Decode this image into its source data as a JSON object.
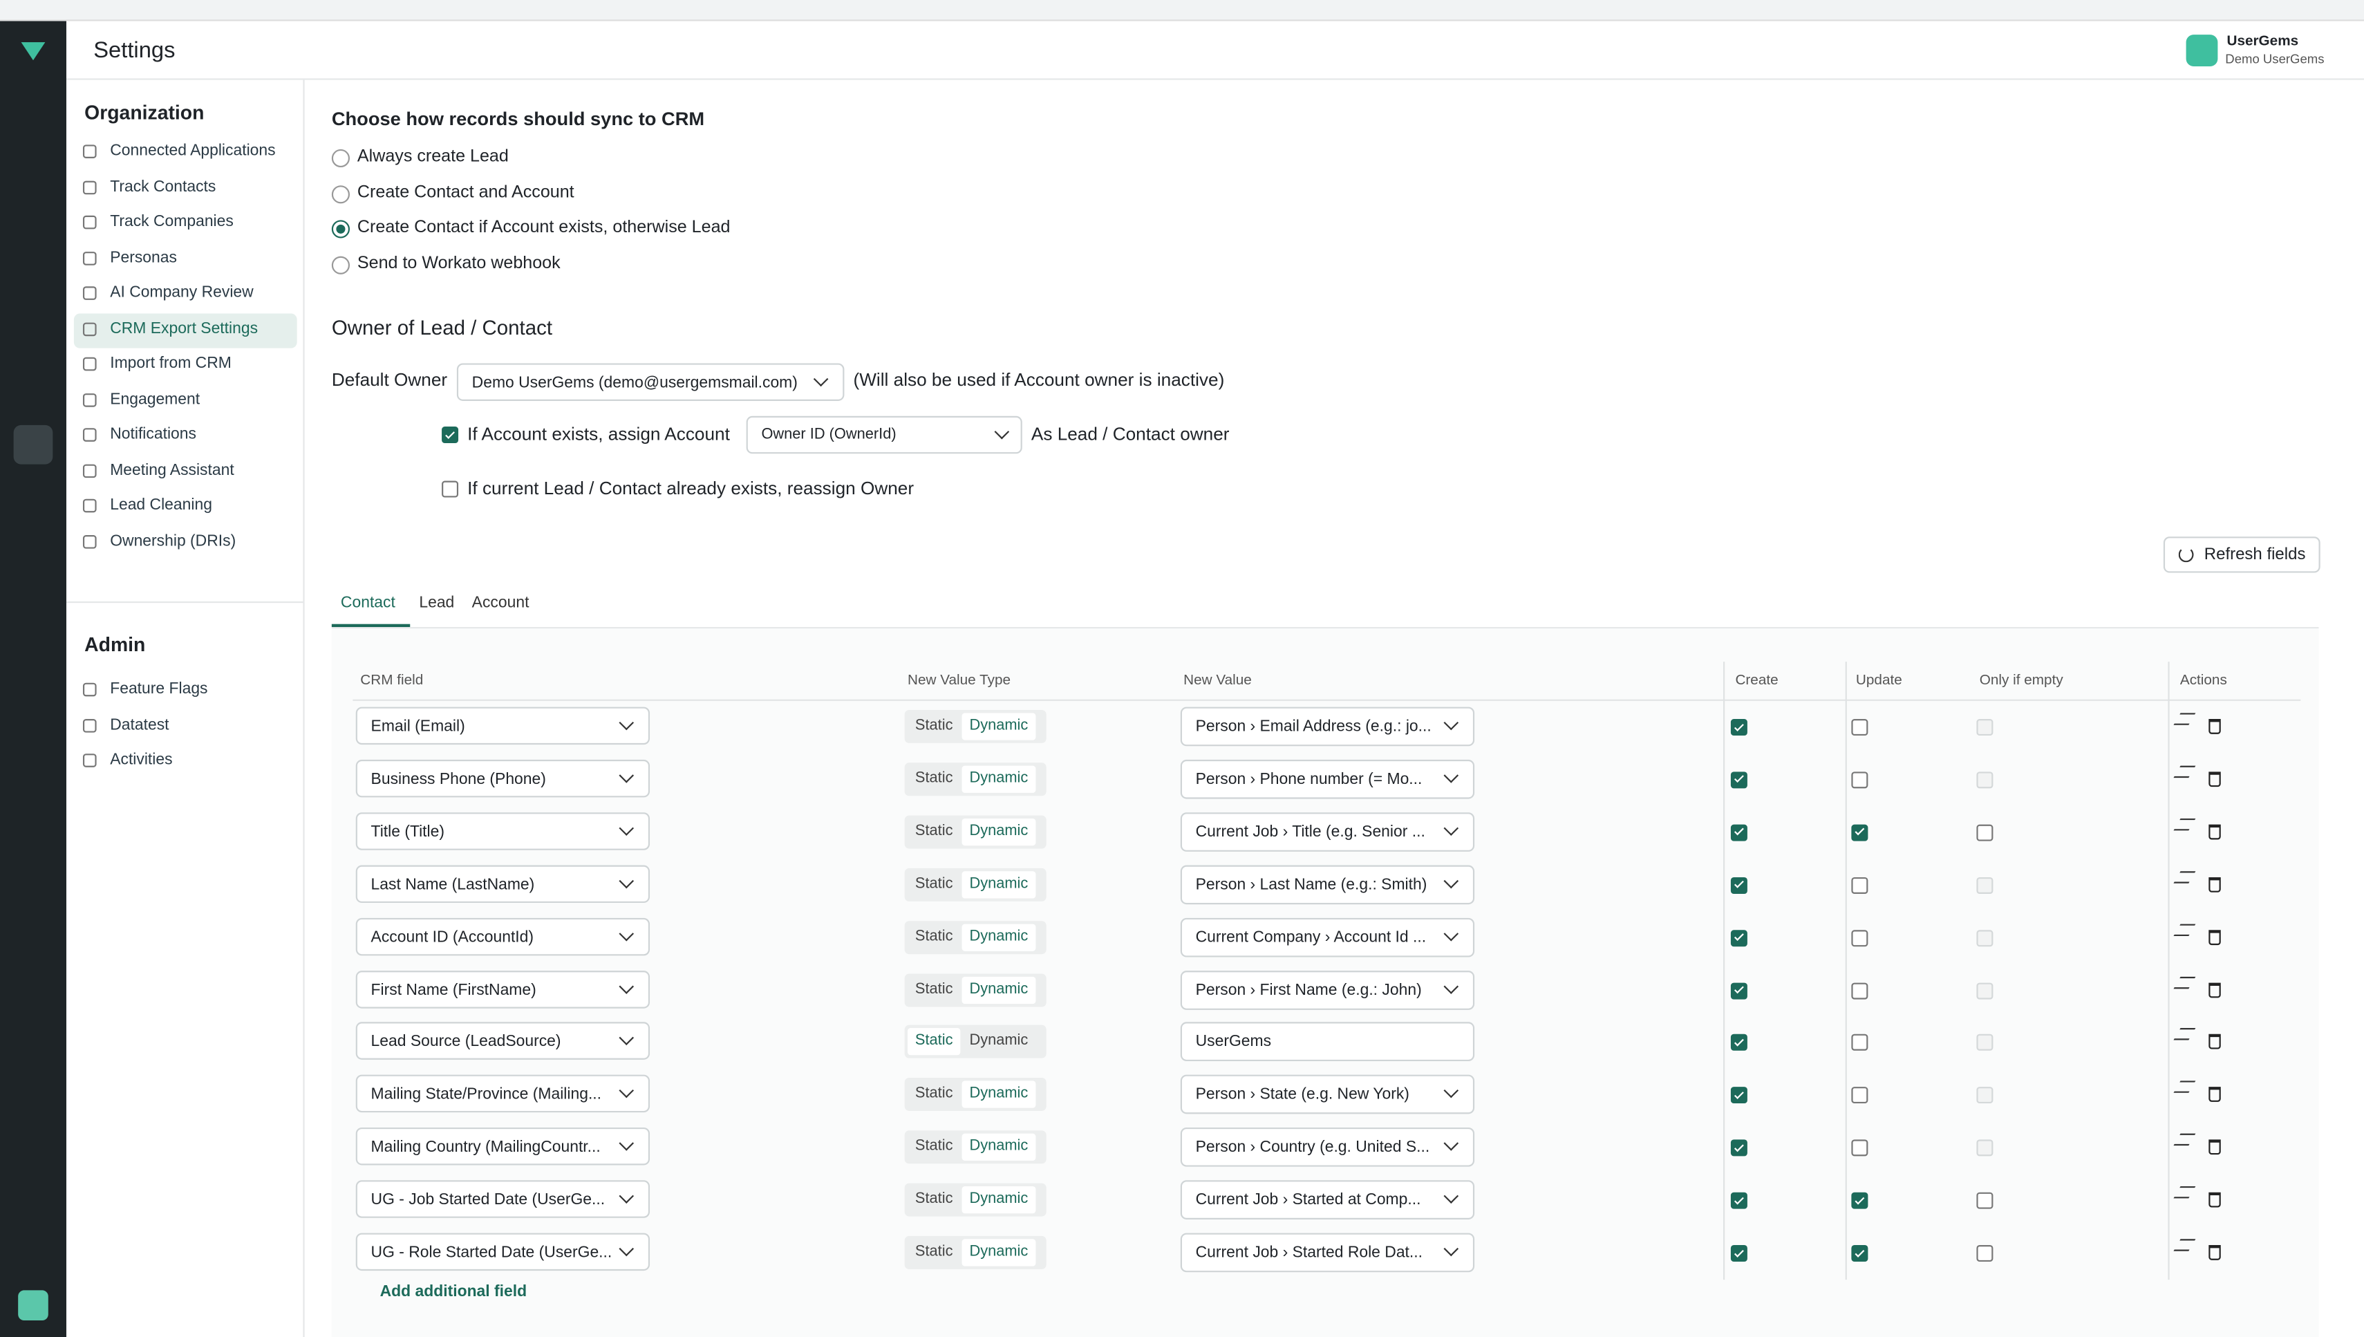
{
  "header": {
    "title": "Settings",
    "account": "UserGems",
    "org": "Demo UserGems"
  },
  "sidebar": {
    "org_heading": "Organization",
    "org_items": [
      "Connected Applications",
      "Track Contacts",
      "Track Companies",
      "Personas",
      "AI Company Review",
      "CRM Export Settings",
      "Import from CRM",
      "Engagement",
      "Notifications",
      "Meeting Assistant",
      "Lead Cleaning",
      "Ownership (DRIs)"
    ],
    "active": 5,
    "admin_heading": "Admin",
    "admin_items": [
      "Feature Flags",
      "Datatest",
      "Activities"
    ]
  },
  "sync": {
    "title": "Choose how records should sync to CRM",
    "options": [
      "Always create Lead",
      "Create Contact and Account",
      "Create Contact if Account exists, otherwise Lead",
      "Send to Workato webhook"
    ],
    "selected": 2
  },
  "owner": {
    "title": "Owner of Lead / Contact",
    "default_label": "Default Owner",
    "default_value": "Demo UserGems (demo@usergemsmail.com)",
    "note": "(Will also be used if Account owner is inactive)",
    "assign_label": "If Account exists, assign Account",
    "assign_value": "Owner ID (OwnerId)",
    "assign_suffix": "As Lead / Contact owner",
    "assign_checked": true,
    "reassign_label": "If current Lead / Contact already exists, reassign Owner",
    "reassign_checked": false
  },
  "refresh": "Refresh fields",
  "tabs": {
    "items": [
      "Contact",
      "Lead",
      "Account"
    ],
    "active": 0
  },
  "table": {
    "headers": [
      "CRM field",
      "New Value Type",
      "New Value",
      "Create",
      "Update",
      "Only if empty",
      "Actions"
    ],
    "type_options": [
      "Static",
      "Dynamic"
    ],
    "rows": [
      {
        "field": "Email (Email)",
        "type": "Dynamic",
        "value": "Person › Email Address (e.g.: jo...",
        "create": true,
        "update": false,
        "only_empty": null
      },
      {
        "field": "Business Phone (Phone)",
        "type": "Dynamic",
        "value": "Person › Phone number (= Mo...",
        "create": true,
        "update": false,
        "only_empty": null
      },
      {
        "field": "Title (Title)",
        "type": "Dynamic",
        "value": "Current Job › Title (e.g. Senior ...",
        "create": true,
        "update": true,
        "only_empty": false
      },
      {
        "field": "Last Name (LastName)",
        "type": "Dynamic",
        "value": "Person › Last Name (e.g.: Smith)",
        "create": true,
        "update": false,
        "only_empty": null
      },
      {
        "field": "Account ID (AccountId)",
        "type": "Dynamic",
        "value": "Current Company › Account Id ...",
        "create": true,
        "update": false,
        "only_empty": null
      },
      {
        "field": "First Name (FirstName)",
        "type": "Dynamic",
        "value": "Person › First Name (e.g.: John)",
        "create": true,
        "update": false,
        "only_empty": null
      },
      {
        "field": "Lead Source (LeadSource)",
        "type": "Static",
        "value": "UserGems",
        "create": true,
        "update": false,
        "only_empty": null
      },
      {
        "field": "Mailing State/Province (Mailing...",
        "type": "Dynamic",
        "value": "Person › State (e.g. New York)",
        "create": true,
        "update": false,
        "only_empty": null
      },
      {
        "field": "Mailing Country (MailingCountr...",
        "type": "Dynamic",
        "value": "Person › Country (e.g. United S...",
        "create": true,
        "update": false,
        "only_empty": null
      },
      {
        "field": "UG - Job Started Date (UserGe...",
        "type": "Dynamic",
        "value": "Current Job › Started at Comp...",
        "create": true,
        "update": true,
        "only_empty": false
      },
      {
        "field": "UG - Role Started Date (UserGe...",
        "type": "Dynamic",
        "value": "Current Job › Started Role Dat...",
        "create": true,
        "update": true,
        "only_empty": false
      }
    ],
    "add_field": "Add additional field"
  }
}
